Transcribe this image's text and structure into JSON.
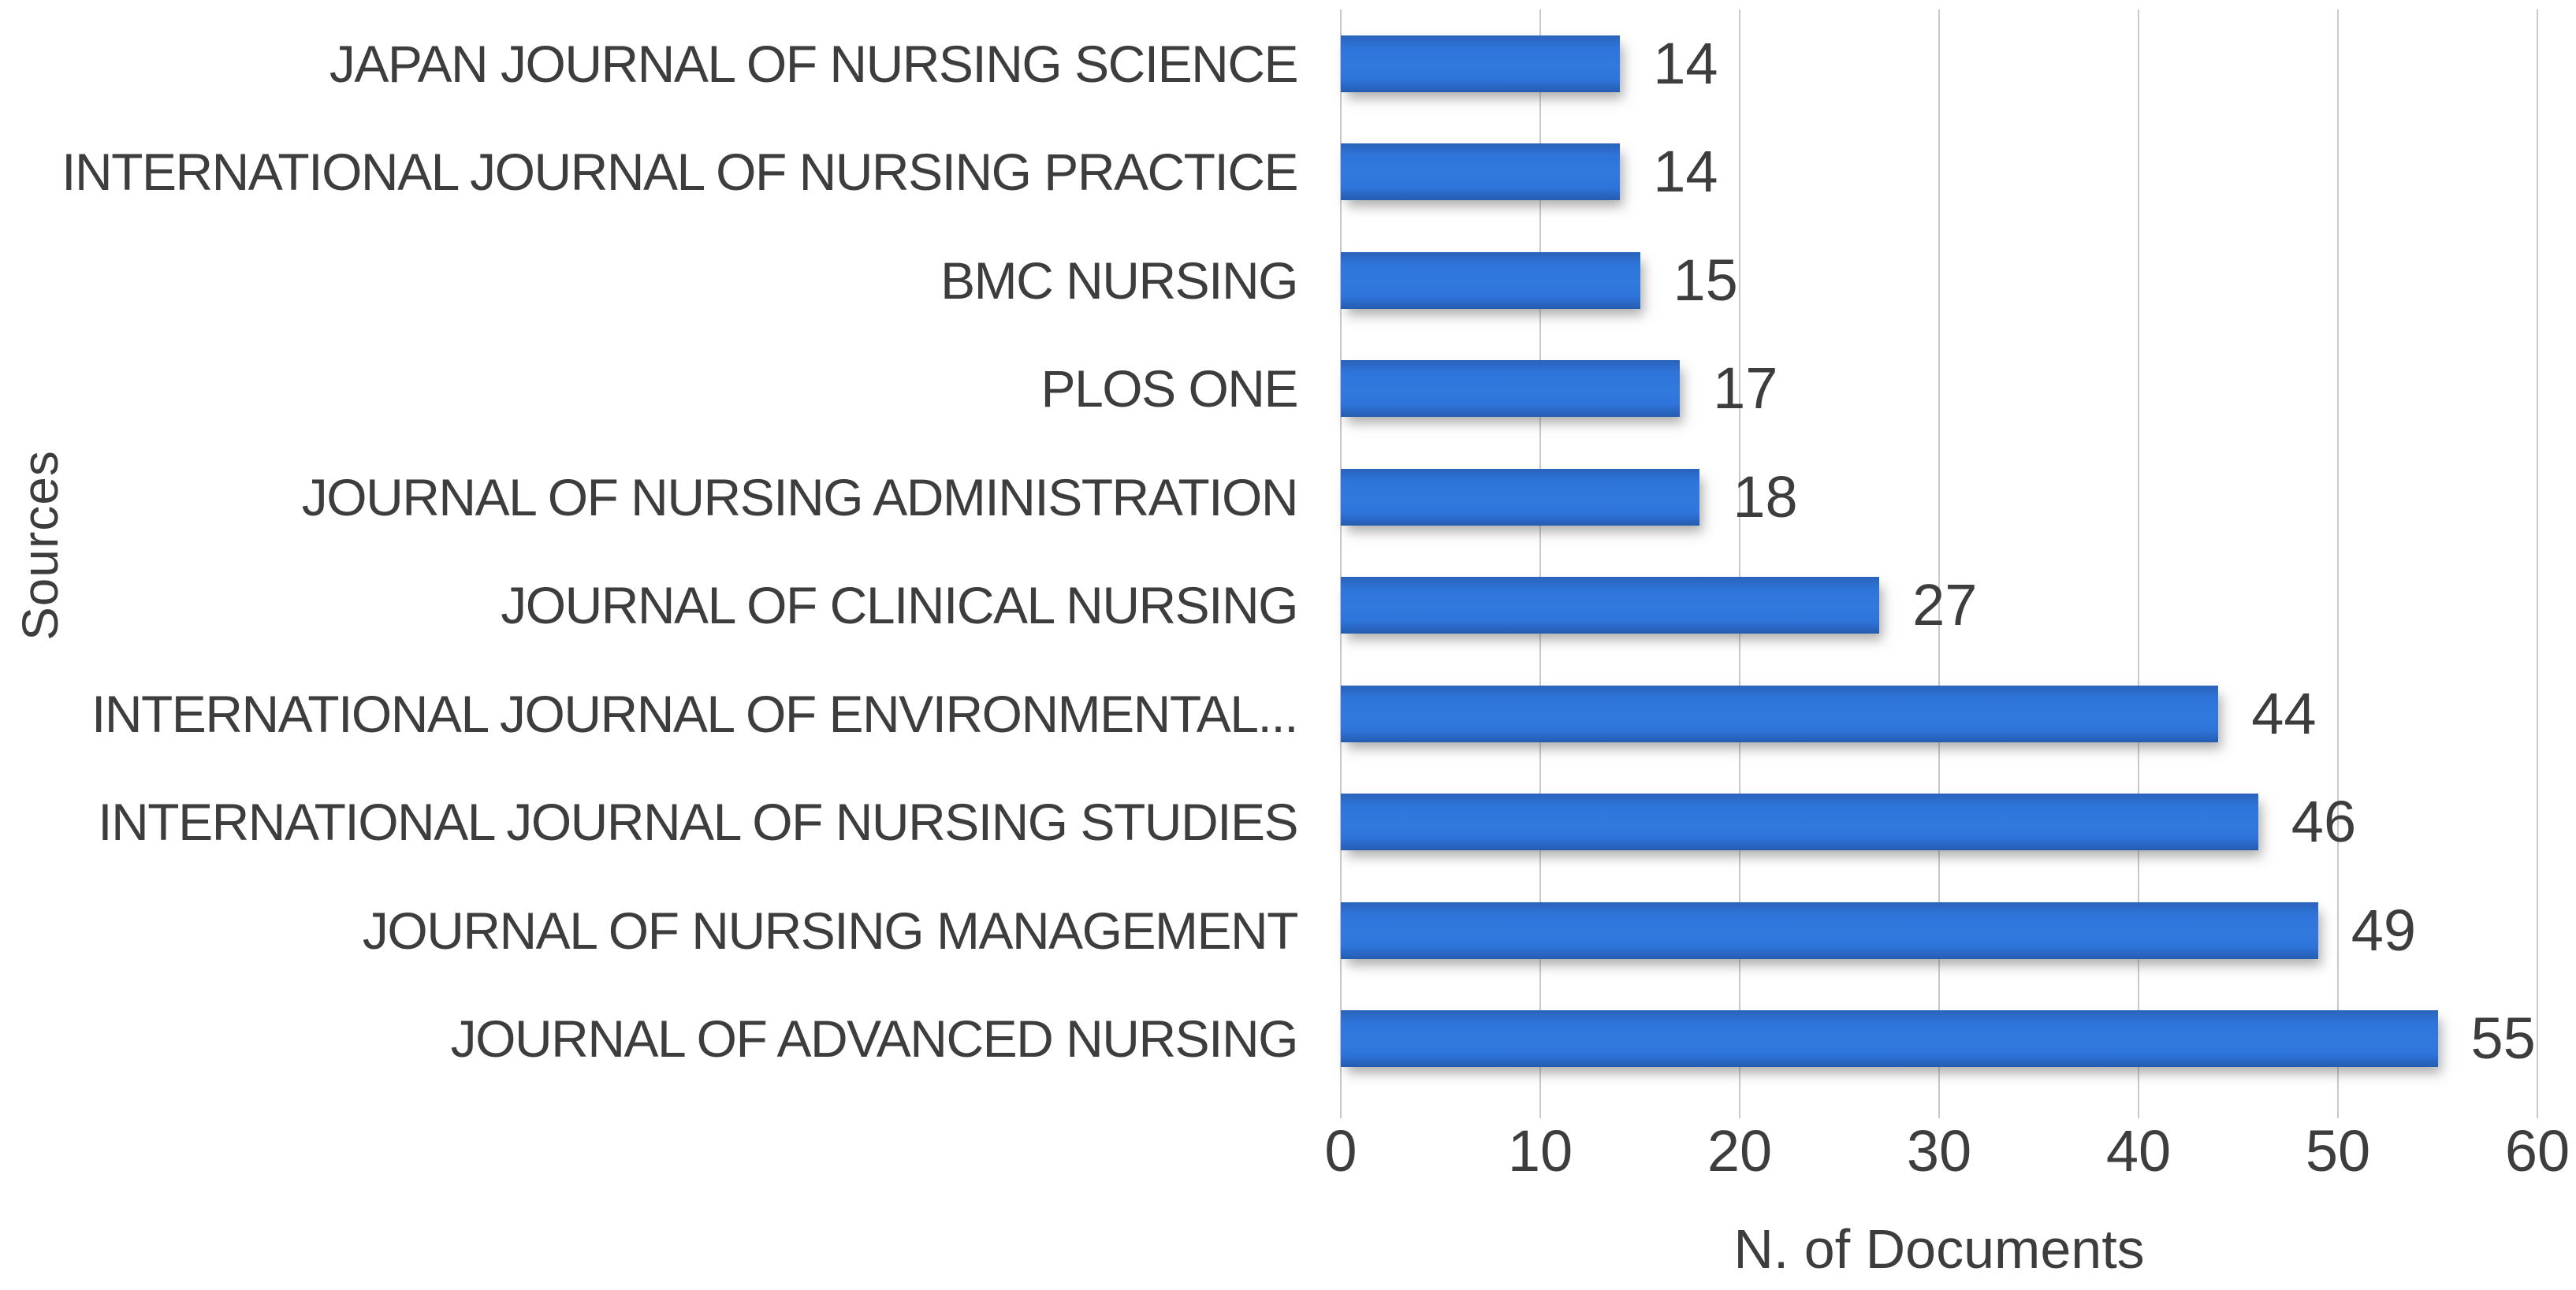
{
  "chart_data": {
    "type": "bar",
    "orientation": "horizontal",
    "title": "",
    "xlabel": "N. of Documents",
    "ylabel": "Sources",
    "categories": [
      "JAPAN JOURNAL OF NURSING SCIENCE",
      "INTERNATIONAL JOURNAL OF NURSING PRACTICE",
      "BMC NURSING",
      "PLOS ONE",
      "JOURNAL OF NURSING ADMINISTRATION",
      "JOURNAL OF CLINICAL NURSING",
      "INTERNATIONAL JOURNAL OF ENVIRONMENTAL...",
      "INTERNATIONAL JOURNAL OF NURSING STUDIES",
      "JOURNAL OF NURSING MANAGEMENT",
      "JOURNAL OF ADVANCED NURSING"
    ],
    "values": [
      14,
      14,
      15,
      17,
      18,
      27,
      44,
      46,
      49,
      55
    ],
    "data_labels": [
      "14",
      "14",
      "15",
      "17",
      "18",
      "27",
      "44",
      "46",
      "49",
      "55"
    ],
    "xlim": [
      0,
      60
    ],
    "xticks": [
      "0",
      "10",
      "20",
      "30",
      "40",
      "50",
      "60"
    ],
    "grid": "vertical-major",
    "legend": "none",
    "bar_color": "#2e74da",
    "gridline_color": "#c9c9c9",
    "text_color": "#3d3d3d",
    "background_color": "#ffffff"
  }
}
